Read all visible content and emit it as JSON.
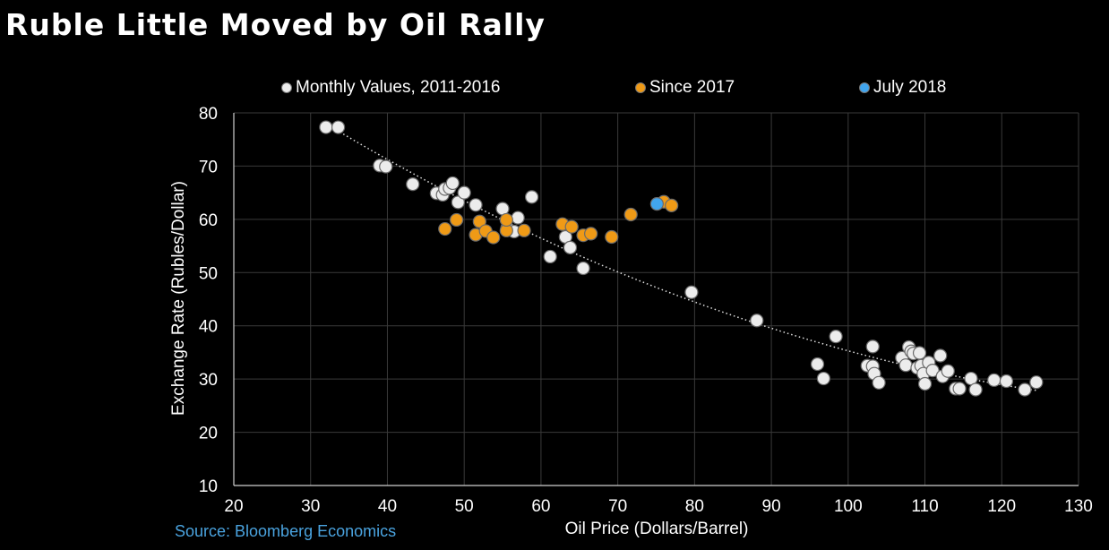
{
  "title": "Ruble Little Moved by Oil Rally",
  "source": "Source: Bloomberg Economics",
  "colors": {
    "monthly": "#ececec",
    "since2017": "#ef9a16",
    "july2018": "#41a5ee",
    "background": "#000000",
    "grid": "#3a3a3a"
  },
  "chart_data": {
    "type": "scatter",
    "title": "Ruble Little Moved by Oil Rally",
    "xlabel": "Oil Price (Dollars/Barrel)",
    "ylabel": "Exchange Rate (Rubles/Dollar)",
    "xlim": [
      20,
      130
    ],
    "ylim": [
      10,
      80
    ],
    "x_ticks": [
      "20",
      "30",
      "40",
      "50",
      "60",
      "70",
      "80",
      "90",
      "100",
      "110",
      "120",
      "130"
    ],
    "y_ticks": [
      "10",
      "20",
      "30",
      "40",
      "50",
      "60",
      "70",
      "80"
    ],
    "grid": true,
    "legend_position": "top",
    "trendline": "dotted polynomial fit through Monthly Values, 2011-2016",
    "series": [
      {
        "name": "Monthly Values, 2011-2016",
        "color": "#ececec",
        "points": [
          [
            32,
            77.3
          ],
          [
            33.6,
            77.3
          ],
          [
            39,
            70.1
          ],
          [
            39.8,
            69.9
          ],
          [
            43.3,
            66.6
          ],
          [
            46.4,
            64.9
          ],
          [
            47.2,
            64.6
          ],
          [
            47.5,
            65.7
          ],
          [
            48.1,
            65.9
          ],
          [
            48.5,
            66.8
          ],
          [
            49.2,
            63.2
          ],
          [
            50,
            65
          ],
          [
            51.5,
            62.7
          ],
          [
            55,
            62
          ],
          [
            55.6,
            58.4
          ],
          [
            56.5,
            57.7
          ],
          [
            57,
            60.3
          ],
          [
            58.8,
            64.2
          ],
          [
            61.2,
            53
          ],
          [
            63.2,
            56.7
          ],
          [
            63.8,
            54.7
          ],
          [
            65.5,
            50.8
          ],
          [
            79.6,
            46.3
          ],
          [
            88.1,
            41
          ],
          [
            96,
            32.8
          ],
          [
            96.8,
            30.1
          ],
          [
            98.4,
            38
          ],
          [
            102.5,
            32.5
          ],
          [
            103.2,
            36.1
          ],
          [
            103.2,
            32.4
          ],
          [
            103.4,
            31
          ],
          [
            104,
            29.3
          ],
          [
            107,
            34
          ],
          [
            107.5,
            32.6
          ],
          [
            107.9,
            36
          ],
          [
            108.2,
            35.2
          ],
          [
            108.5,
            34.8
          ],
          [
            109,
            32.1
          ],
          [
            109.3,
            34.9
          ],
          [
            109.5,
            32.5
          ],
          [
            109.8,
            31
          ],
          [
            110,
            29.1
          ],
          [
            110.5,
            33.1
          ],
          [
            111,
            31.6
          ],
          [
            112,
            34.4
          ],
          [
            112.3,
            30.5
          ],
          [
            113,
            31.5
          ],
          [
            114,
            28.2
          ],
          [
            114.5,
            28.2
          ],
          [
            116,
            30.1
          ],
          [
            116.6,
            28
          ],
          [
            119,
            29.8
          ],
          [
            120.6,
            29.6
          ],
          [
            123,
            28
          ],
          [
            124.5,
            29.4
          ]
        ]
      },
      {
        "name": "Since 2017",
        "color": "#ef9a16",
        "points": [
          [
            47.5,
            58.2
          ],
          [
            49,
            59.9
          ],
          [
            51.5,
            57.1
          ],
          [
            52,
            59.6
          ],
          [
            52.8,
            57.8
          ],
          [
            53.8,
            56.6
          ],
          [
            55.5,
            57.9
          ],
          [
            55.5,
            59.9
          ],
          [
            57.8,
            57.9
          ],
          [
            62.8,
            59.1
          ],
          [
            64,
            58.6
          ],
          [
            65.5,
            57
          ],
          [
            66.5,
            57.3
          ],
          [
            69.2,
            56.7
          ],
          [
            71.7,
            60.9
          ],
          [
            76,
            63.3
          ],
          [
            77,
            62.6
          ]
        ]
      },
      {
        "name": "July 2018",
        "color": "#41a5ee",
        "points": [
          [
            75.1,
            62.9
          ]
        ]
      }
    ]
  }
}
